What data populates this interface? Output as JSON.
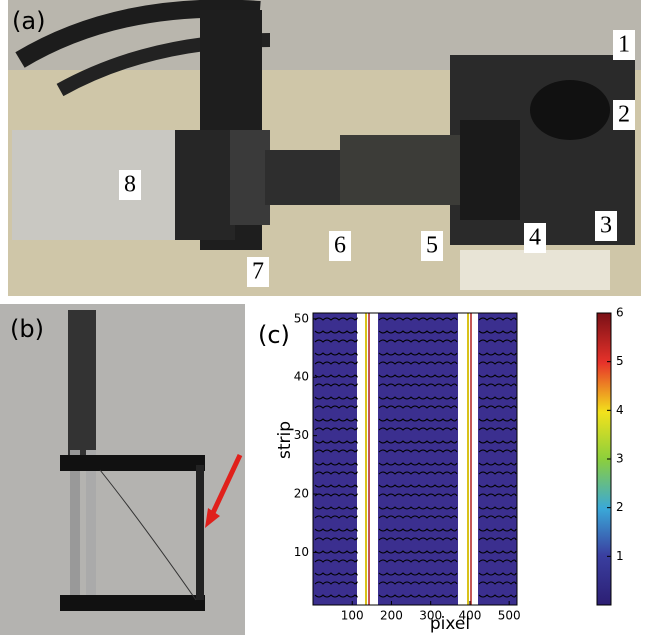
{
  "panel_a": {
    "label": "(a)",
    "callouts": [
      "1",
      "2",
      "3",
      "4",
      "5",
      "6",
      "7",
      "8"
    ]
  },
  "panel_b": {
    "label": "(b)"
  },
  "chart_data": {
    "type": "contour",
    "panel_label": "(c)",
    "x_label": "pixel",
    "y_label": "strip",
    "xlim": [
      0,
      520
    ],
    "ylim": [
      1,
      51
    ],
    "xticks": [
      100,
      200,
      300,
      400,
      500
    ],
    "yticks": [
      10,
      20,
      30,
      40,
      50
    ],
    "colorbar": {
      "lim": [
        0,
        6
      ],
      "ticks": [
        1,
        2,
        3,
        4,
        5,
        6
      ]
    }
  }
}
